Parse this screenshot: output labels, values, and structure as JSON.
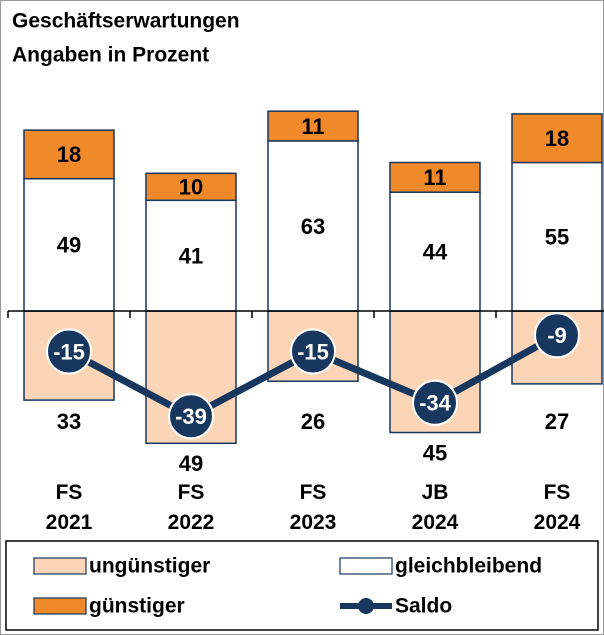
{
  "chart_data": {
    "type": "stacked-bar-line",
    "title": "Geschäftserwartungen",
    "subtitle": "Angaben in Prozent",
    "categories": [
      [
        "FS",
        "2021"
      ],
      [
        "FS",
        "2022"
      ],
      [
        "FS",
        "2023"
      ],
      [
        "JB",
        "2024"
      ],
      [
        "FS",
        "2024"
      ]
    ],
    "series": [
      {
        "name": "ungünstiger",
        "color": "#fbd5b5",
        "values": [
          -33,
          -49,
          -26,
          -45,
          -27
        ],
        "value_labels": [
          "33",
          "49",
          "26",
          "45",
          "27"
        ]
      },
      {
        "name": "gleichbleibend",
        "color": "#ffffff",
        "values": [
          49,
          41,
          63,
          44,
          55
        ]
      },
      {
        "name": "günstiger",
        "color": "#f0892a",
        "values": [
          18,
          10,
          11,
          11,
          18
        ]
      },
      {
        "name": "Saldo",
        "type": "line",
        "color": "#17375e",
        "values": [
          -15,
          -39,
          -15,
          -34,
          -9
        ]
      }
    ],
    "ylim": [
      -50,
      75
    ]
  }
}
